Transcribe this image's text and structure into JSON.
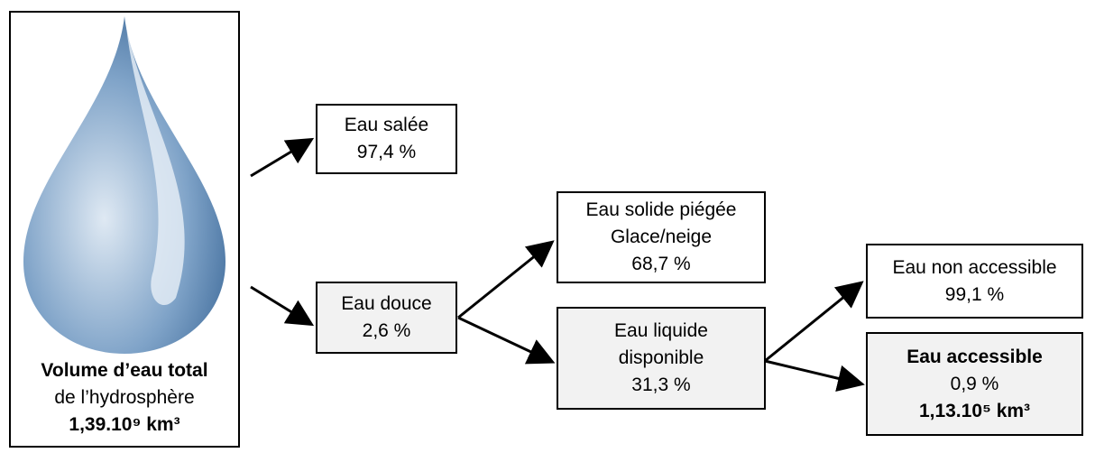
{
  "source": {
    "title": "Volume d’eau total",
    "subtitle": "de l’hydrosphère",
    "volume": "1,39.10⁹ km³"
  },
  "nodes": [
    {
      "label": "Eau salée",
      "share": "97,4 %"
    },
    {
      "label": "Eau douce",
      "share": "2,6 %"
    },
    {
      "label": "Eau solide piégée",
      "detail": "Glace/neige",
      "share": "68,7 %"
    },
    {
      "label": "Eau liquide disponible",
      "share": "31,3 %"
    },
    {
      "label": "Eau non accessible",
      "share": "99,1 %"
    },
    {
      "label": "Eau accessible",
      "share": "0,9 %",
      "volume": "1,13.10⁵ km³"
    }
  ]
}
